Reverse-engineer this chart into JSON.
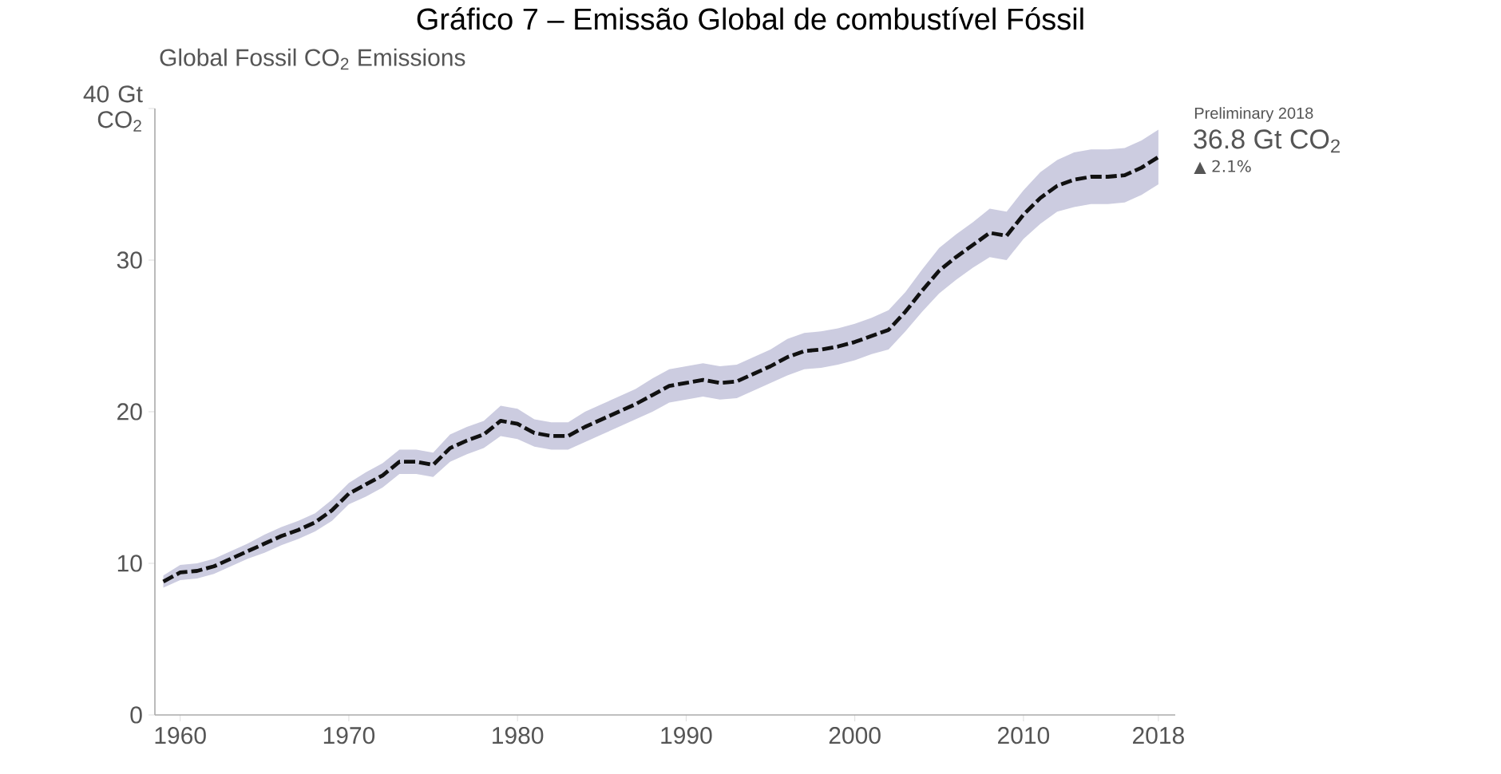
{
  "chart_data": {
    "type": "line",
    "title": "Gráfico 7 – Emissão Global de combustível Fóssil",
    "subtitle": "Global Fossil CO$_{2}$ Emissions",
    "x": [
      1959,
      1960,
      1961,
      1962,
      1963,
      1964,
      1965,
      1966,
      1967,
      1968,
      1969,
      1970,
      1971,
      1972,
      1973,
      1974,
      1975,
      1976,
      1977,
      1978,
      1979,
      1980,
      1981,
      1982,
      1983,
      1984,
      1985,
      1986,
      1987,
      1988,
      1989,
      1990,
      1991,
      1992,
      1993,
      1994,
      1995,
      1996,
      1997,
      1998,
      1999,
      2000,
      2001,
      2002,
      2003,
      2004,
      2005,
      2006,
      2007,
      2008,
      2009,
      2010,
      2011,
      2012,
      2013,
      2014,
      2015,
      2016,
      2017,
      2018
    ],
    "series": [
      {
        "color": "#111111",
        "line_style": "dashed",
        "values": [
          8.8,
          9.4,
          9.5,
          9.8,
          10.3,
          10.8,
          11.3,
          11.8,
          12.2,
          12.7,
          13.5,
          14.6,
          15.2,
          15.8,
          16.7,
          16.7,
          16.5,
          17.6,
          18.1,
          18.5,
          19.4,
          19.2,
          18.6,
          18.4,
          18.4,
          19.0,
          19.5,
          20.0,
          20.5,
          21.1,
          21.7,
          21.9,
          22.1,
          21.9,
          22.0,
          22.5,
          23.0,
          23.6,
          24.0,
          24.1,
          24.3,
          24.6,
          25.0,
          25.4,
          26.6,
          28.0,
          29.3,
          30.2,
          31.0,
          31.8,
          31.6,
          33.0,
          34.1,
          34.9,
          35.3,
          35.5,
          35.5,
          35.6,
          36.1,
          36.8
        ],
        "lower": [
          8.4,
          8.9,
          9.0,
          9.3,
          9.8,
          10.3,
          10.7,
          11.2,
          11.6,
          12.1,
          12.8,
          13.9,
          14.4,
          15.0,
          15.9,
          15.9,
          15.7,
          16.7,
          17.2,
          17.6,
          18.4,
          18.2,
          17.7,
          17.5,
          17.5,
          18.0,
          18.5,
          19.0,
          19.5,
          20.0,
          20.6,
          20.8,
          21.0,
          20.8,
          20.9,
          21.4,
          21.9,
          22.4,
          22.8,
          22.9,
          23.1,
          23.4,
          23.8,
          24.1,
          25.3,
          26.6,
          27.8,
          28.7,
          29.5,
          30.2,
          30.0,
          31.4,
          32.4,
          33.2,
          33.5,
          33.7,
          33.7,
          33.8,
          34.3,
          35.0
        ],
        "upper": [
          9.2,
          9.9,
          10.0,
          10.3,
          10.8,
          11.3,
          11.9,
          12.4,
          12.8,
          13.3,
          14.2,
          15.3,
          16.0,
          16.6,
          17.5,
          17.5,
          17.3,
          18.5,
          19.0,
          19.4,
          20.4,
          20.2,
          19.5,
          19.3,
          19.3,
          20.0,
          20.5,
          21.0,
          21.5,
          22.2,
          22.8,
          23.0,
          23.2,
          23.0,
          23.1,
          23.6,
          24.1,
          24.8,
          25.2,
          25.3,
          25.5,
          25.8,
          26.2,
          26.7,
          27.9,
          29.4,
          30.8,
          31.7,
          32.5,
          33.4,
          33.2,
          34.6,
          35.8,
          36.6,
          37.1,
          37.3,
          37.3,
          37.4,
          37.9,
          38.6
        ]
      }
    ],
    "xlim": [
      1958.5,
      2019
    ],
    "xticks": [
      1960,
      1970,
      1980,
      1990,
      2000,
      2010,
      2018
    ],
    "ylim": [
      0,
      40
    ],
    "yticks": [
      0,
      10,
      20,
      30,
      {
        "value": 40,
        "label": "40 Gt CO$_{2}$"
      }
    ],
    "grid": false,
    "annotations": [
      "Preliminary 2018",
      {
        "text": "36.8 Gt CO$_{2}$",
        "x": 2018,
        "y": 36.8
      },
      "▲ 2.1%"
    ]
  }
}
